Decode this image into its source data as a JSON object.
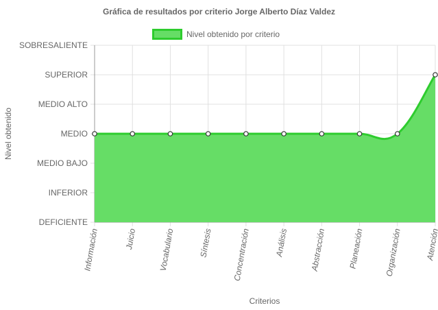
{
  "colors": {
    "series_fill": "#66dd66",
    "series_border": "#2ecc2e",
    "grid": "#e0e0e0",
    "axis": "#999999"
  },
  "chart_data": {
    "type": "area",
    "title": "Gráfica de resultados por criterio Jorge Alberto Díaz Valdez",
    "xlabel": "Criterios",
    "ylabel": "Nivel obtenido",
    "y_levels": [
      "DEFICIENTE",
      "INFERIOR",
      "MEDIO BAJO",
      "MEDIO",
      "MEDIO ALTO",
      "SUPERIOR",
      "SOBRESALIENTE"
    ],
    "ylim": [
      0,
      6
    ],
    "grid": true,
    "legend_position": "top-center",
    "categories": [
      "Información",
      "Juicio",
      "Vocabulario",
      "Síntesis",
      "Concentración",
      "Análisis",
      "Abstracción",
      "Planeación",
      "Organización",
      "Atención"
    ],
    "series": [
      {
        "name": "Nivel obtenido por criterio",
        "values": [
          3,
          3,
          3,
          3,
          3,
          3,
          3,
          3,
          3,
          5
        ]
      }
    ]
  }
}
